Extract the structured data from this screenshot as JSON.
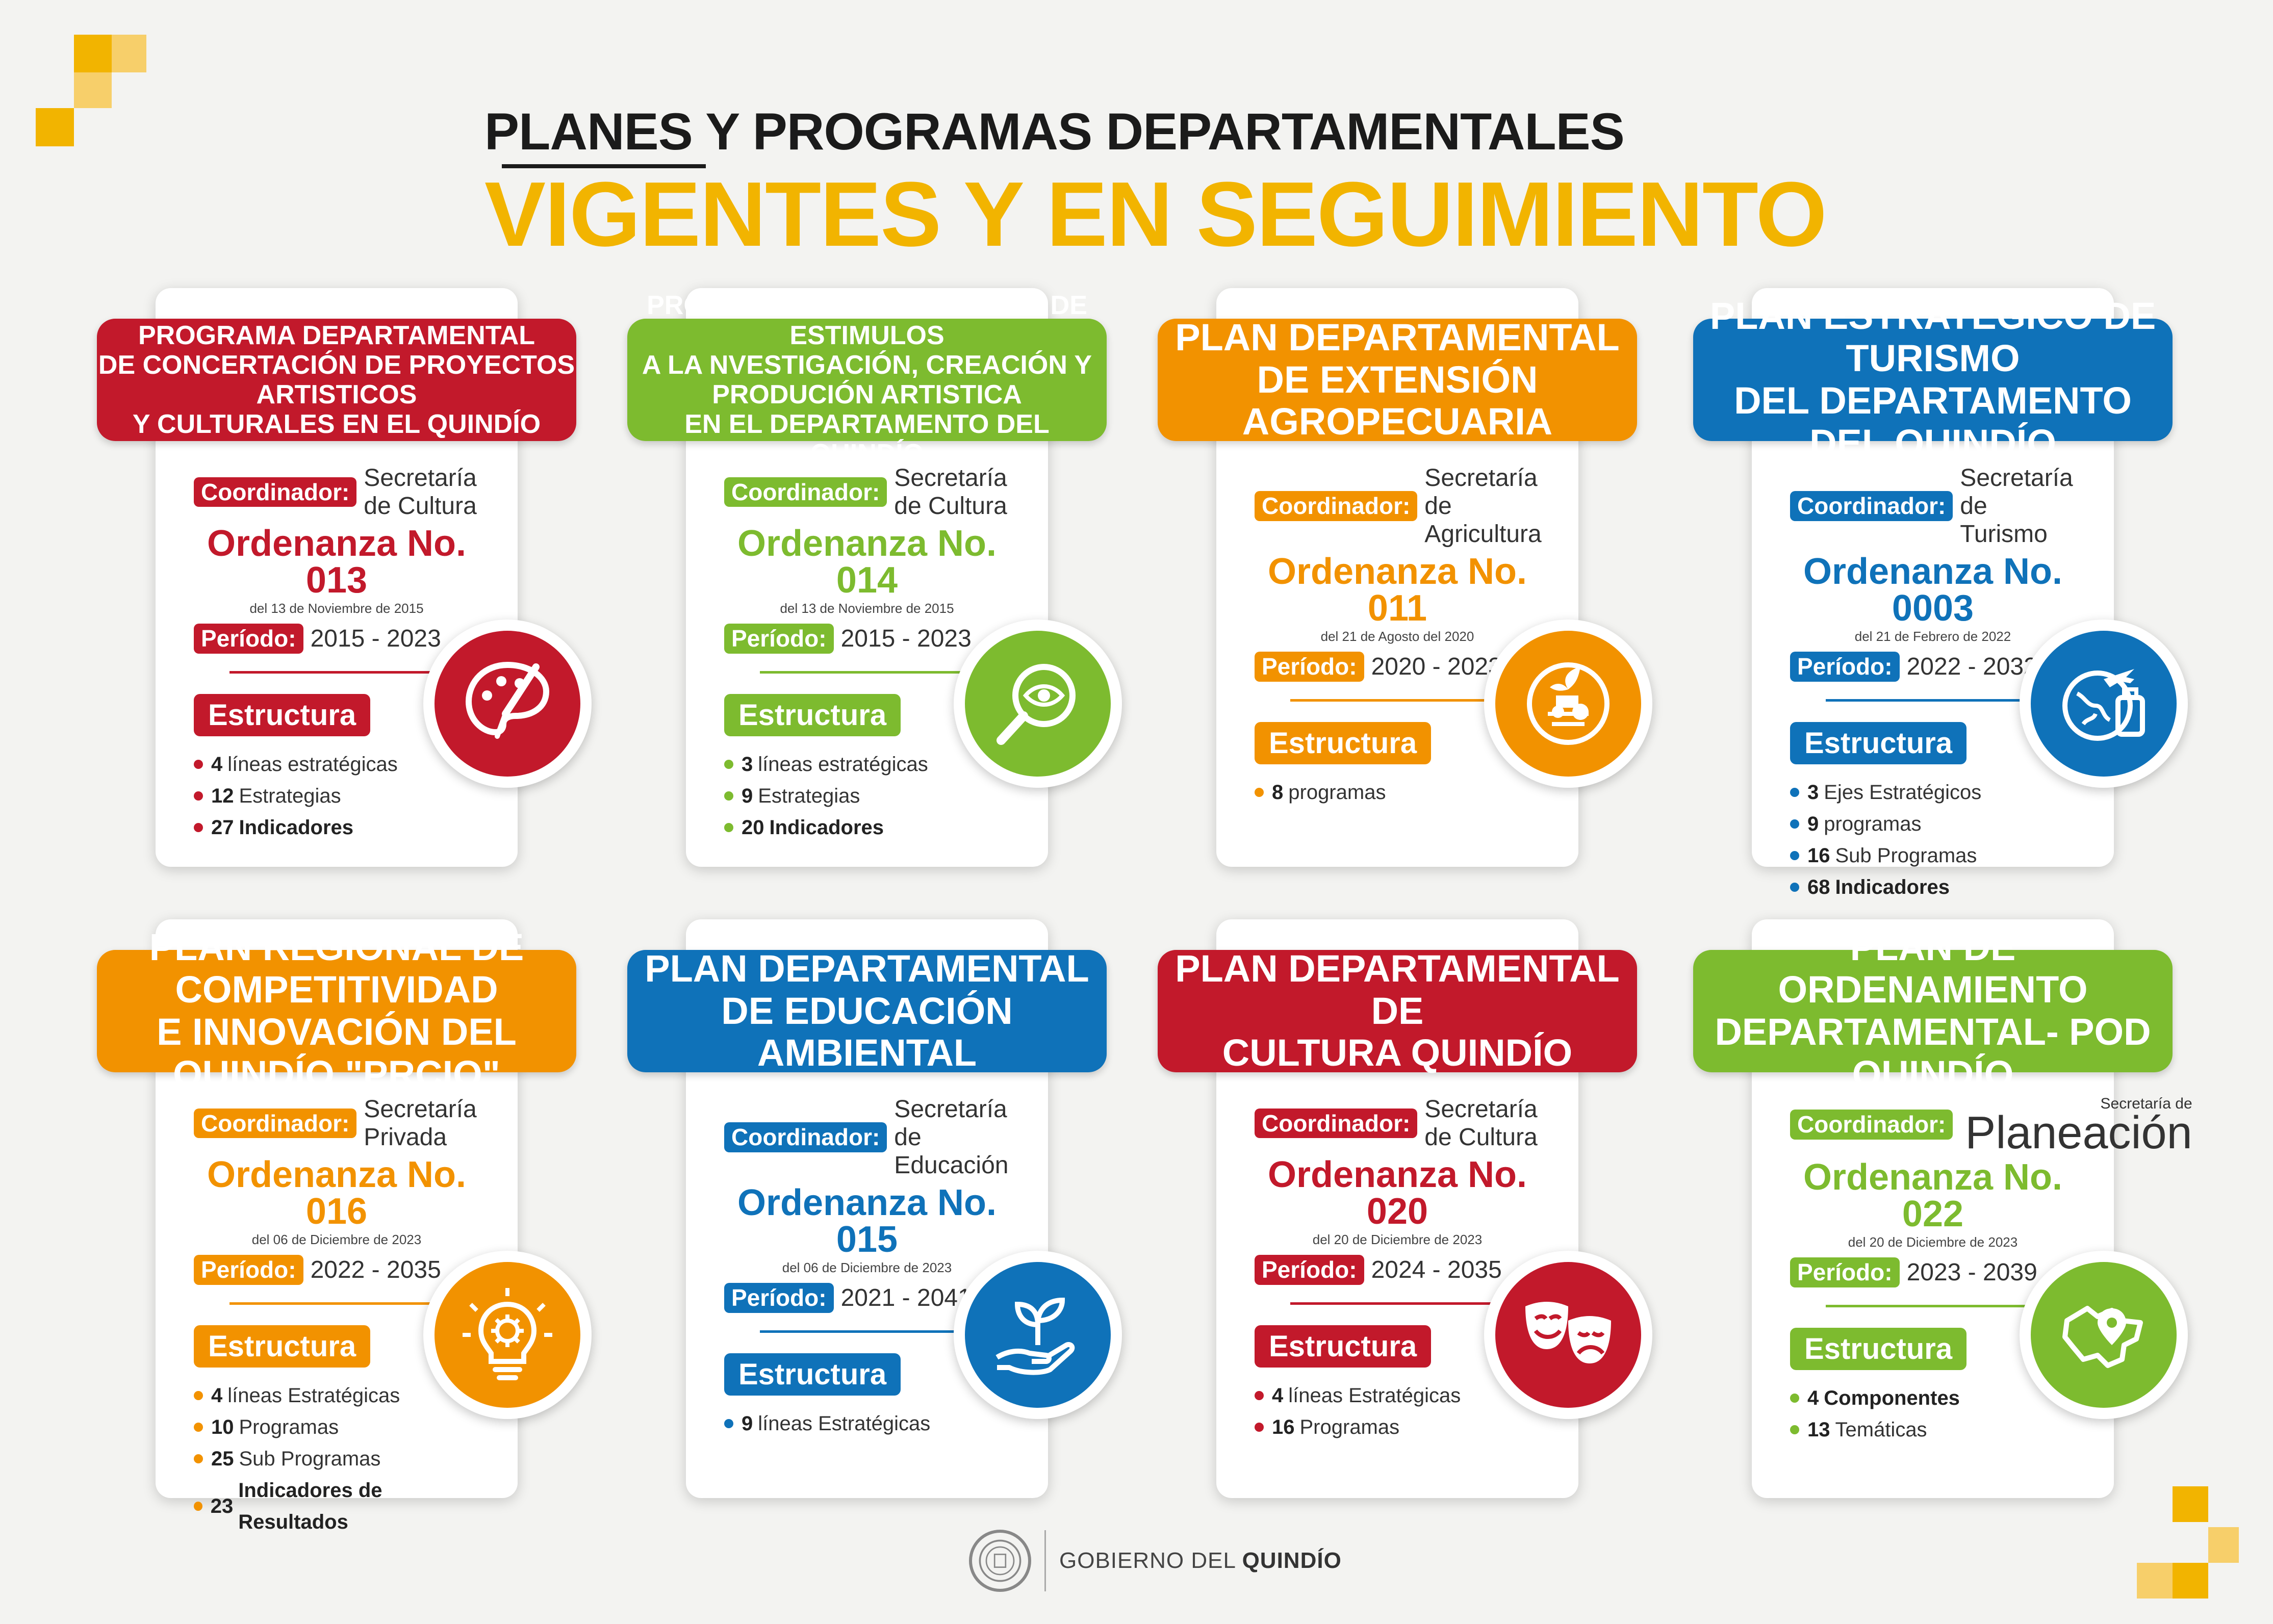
{
  "title": {
    "line1": "PLANES Y PROGRAMAS DEPARTAMENTALES",
    "line2": "VIGENTES Y EN SEGUIMIENTO"
  },
  "labels": {
    "coordinador": "Coordinador:",
    "periodo": "Período:",
    "estructura": "Estructura"
  },
  "colors": {
    "red": "#c2192b",
    "green": "#7dbb2f",
    "orange": "#f29200",
    "blue": "#0f72b9",
    "yellow": "#f2b400"
  },
  "cards": [
    {
      "color": "#c2192b",
      "title_lines": [
        "PROGRAMA DEPARTAMENTAL",
        "DE CONCERTACIÓN DE PROYECTOS ARTISTICOS",
        "Y CULTURALES EN EL QUINDÍO"
      ],
      "coordinador": "Secretaría de Cultura",
      "ordenanza": "Ordenanza No. 013",
      "ordenanza_date": "del 13 de Noviembre de 2015",
      "periodo": "2015 - 2023",
      "items": [
        {
          "num": "4",
          "text": "líneas estratégicas",
          "bold": false
        },
        {
          "num": "12",
          "text": "Estrategias",
          "bold": false
        },
        {
          "num": "27",
          "text": "Indicadores",
          "bold": true
        }
      ],
      "icon": "palette-icon"
    },
    {
      "color": "#7dbb2f",
      "title_lines": [
        "PROGRAMA DEPARTAMENTAL DE ESTIMULOS",
        "A LA NVESTIGACIÓN, CREACIÓN Y PRODUCIÓN ARTISTICA",
        "EN EL DEPARTAMENTO DEL QUINDÍO"
      ],
      "coordinador": "Secretaría de Cultura",
      "ordenanza": "Ordenanza No. 014",
      "ordenanza_date": "del 13 de Noviembre de 2015",
      "periodo": "2015 - 2023",
      "items": [
        {
          "num": "3",
          "text": "líneas estratégicas",
          "bold": false
        },
        {
          "num": "9",
          "text": "Estrategias",
          "bold": false
        },
        {
          "num": "20",
          "text": "Indicadores",
          "bold": true
        }
      ],
      "icon": "magnifier-eye-icon"
    },
    {
      "color": "#f29200",
      "title_lines": [
        "PLAN DEPARTAMENTAL",
        "DE EXTENSIÓN AGROPECUARIA"
      ],
      "coordinador": "Secretaría de Agricultura",
      "ordenanza": "Ordenanza No. 011",
      "ordenanza_date": "del 21 de Agosto del 2020",
      "periodo": "2020 - 2023",
      "items": [
        {
          "num": "8",
          "text": "programas",
          "bold": false
        }
      ],
      "icon": "tractor-icon"
    },
    {
      "color": "#0f72b9",
      "title_lines": [
        "PLAN ESTRATÉGICO DE TURISMO",
        "DEL DEPARTAMENTO DEL QUINDÍO"
      ],
      "coordinador": "Secretaría de Turismo",
      "ordenanza": "Ordenanza No. 0003",
      "ordenanza_date": "del 21 de Febrero de 2022",
      "periodo": "2022 - 2032",
      "items": [
        {
          "num": "3",
          "text": "Ejes Estratégicos",
          "bold": false
        },
        {
          "num": "9",
          "text": "programas",
          "bold": false
        },
        {
          "num": "16",
          "text": "Sub Programas",
          "bold": false
        },
        {
          "num": "68",
          "text": "Indicadores",
          "bold": true
        }
      ],
      "icon": "globe-travel-icon"
    },
    {
      "color": "#f29200",
      "title_lines": [
        "PLAN REGIONAL DE COMPETITIVIDAD",
        "E INNOVACIÓN DEL QUINDÍO \"PRCIQ\""
      ],
      "coordinador": "Secretaría Privada",
      "ordenanza": "Ordenanza No. 016",
      "ordenanza_date": "del 06 de Diciembre de 2023",
      "periodo": "2022 - 2035",
      "items": [
        {
          "num": "4",
          "text": "líneas Estratégicas",
          "bold": false
        },
        {
          "num": "10",
          "text": "Programas",
          "bold": false
        },
        {
          "num": "25",
          "text": "Sub Programas",
          "bold": false
        },
        {
          "num": "23",
          "text": "Indicadores de Resultados",
          "bold": true
        }
      ],
      "icon": "lightbulb-gear-icon"
    },
    {
      "color": "#0f72b9",
      "title_lines": [
        "PLAN DEPARTAMENTAL",
        "DE EDUCACIÓN AMBIENTAL"
      ],
      "coordinador": "Secretaría de Educación",
      "ordenanza": "Ordenanza No. 015",
      "ordenanza_date": "del 06 de Diciembre de 2023",
      "periodo": "2021 - 2041",
      "items": [
        {
          "num": "9",
          "text": "líneas Estratégicas",
          "bold": false
        }
      ],
      "icon": "hand-plant-icon"
    },
    {
      "color": "#c2192b",
      "title_lines": [
        "PLAN DEPARTAMENTAL DE",
        "CULTURA QUINDÍO"
      ],
      "coordinador": "Secretaría de Cultura",
      "ordenanza": "Ordenanza No. 020",
      "ordenanza_date": "del 20 de Diciembre de 2023",
      "periodo": "2024 - 2035",
      "items": [
        {
          "num": "4",
          "text": "líneas Estratégicas",
          "bold": false
        },
        {
          "num": "16",
          "text": "Programas",
          "bold": false
        }
      ],
      "icon": "theater-masks-icon"
    },
    {
      "color": "#7dbb2f",
      "title_lines": [
        "PLAN DE ORDENAMIENTO",
        "DEPARTAMENTAL- POD QUINDÍO"
      ],
      "coordinador_small": "Secretaría de",
      "coordinador_big": "Planeación",
      "ordenanza": "Ordenanza No. 022",
      "ordenanza_date": "del 20 de Diciembre de 2023",
      "periodo": "2023 - 2039",
      "items": [
        {
          "num": "4",
          "text": "Componentes",
          "bold": true
        },
        {
          "num": "13",
          "text": "Temáticas",
          "bold": false
        }
      ],
      "icon": "map-pin-icon"
    }
  ],
  "footer": {
    "prefix": "GOBIERNO DEL ",
    "bold": "QUINDÍO"
  }
}
